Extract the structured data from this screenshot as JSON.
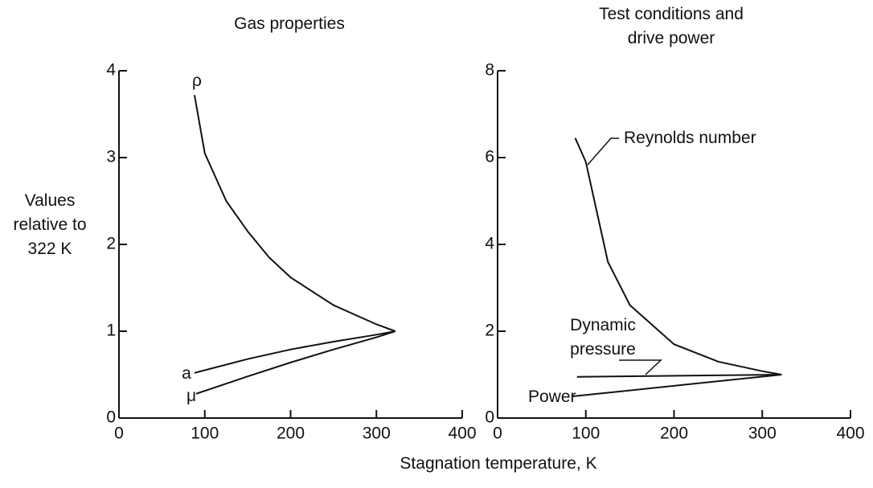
{
  "xlabel": "Stagnation temperature, K",
  "ylabel": "Values relative to 322 K",
  "chart_data": [
    {
      "type": "line",
      "title": "Gas properties",
      "xlim": [
        0,
        400
      ],
      "xticks": [
        0,
        100,
        200,
        300,
        400
      ],
      "ylim": [
        0,
        4
      ],
      "yticks": [
        0,
        1,
        2,
        3,
        4
      ],
      "series": [
        {
          "name": "ρ",
          "color": "#111111",
          "x": [
            88,
            100,
            125,
            150,
            175,
            200,
            250,
            300,
            322
          ],
          "values": [
            3.72,
            3.05,
            2.5,
            2.15,
            1.85,
            1.62,
            1.3,
            1.08,
            1
          ]
        },
        {
          "name": "a",
          "color": "#111111",
          "x": [
            88,
            150,
            200,
            250,
            300,
            322
          ],
          "values": [
            0.52,
            0.68,
            0.79,
            0.88,
            0.96,
            1
          ]
        },
        {
          "name": "μ",
          "color": "#111111",
          "x": [
            90,
            150,
            200,
            250,
            300,
            322
          ],
          "values": [
            0.28,
            0.48,
            0.64,
            0.79,
            0.93,
            1
          ]
        }
      ]
    },
    {
      "type": "line",
      "title": "Test conditions and drive power",
      "xlim": [
        0,
        400
      ],
      "xticks": [
        0,
        100,
        200,
        300,
        400
      ],
      "ylim": [
        0,
        8
      ],
      "yticks": [
        0,
        2,
        4,
        6,
        8
      ],
      "series": [
        {
          "name": "Reynolds number",
          "color": "#111111",
          "x": [
            88,
            100,
            125,
            150,
            200,
            250,
            300,
            322
          ],
          "values": [
            6.45,
            5.9,
            3.6,
            2.6,
            1.7,
            1.3,
            1.08,
            1
          ]
        },
        {
          "name": "Dynamic pressure",
          "color": "#111111",
          "x": [
            90,
            322
          ],
          "values": [
            0.95,
            1
          ]
        },
        {
          "name": "Power",
          "color": "#111111",
          "x": [
            85,
            322
          ],
          "values": [
            0.5,
            1
          ]
        }
      ]
    }
  ]
}
